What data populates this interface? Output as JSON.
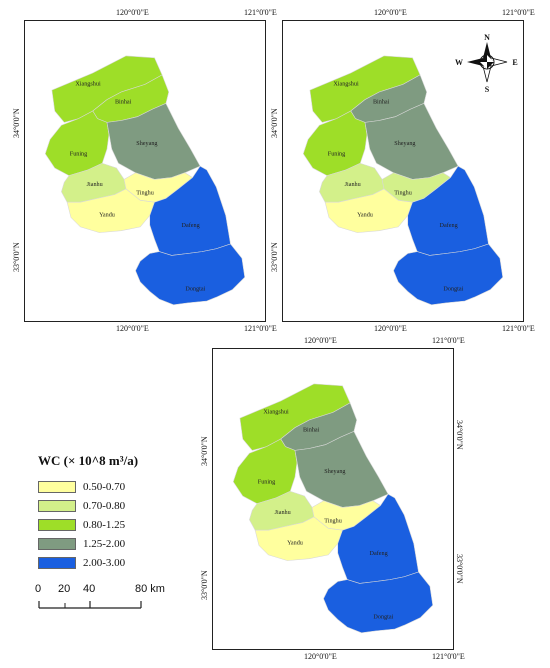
{
  "maps": [
    {
      "lon_top": [
        "120°0'0\"E",
        "121°0'0\"E"
      ],
      "lon_bottom": [
        "120°0'0\"E",
        "121°0'0\"E"
      ],
      "lat_left": [
        "34°0'0\"N",
        "33°0'0\"N"
      ],
      "lat_right": [],
      "counties": {
        "xiangshui": {
          "label": "Xiangshui",
          "class": "0.80-1.25"
        },
        "binhai": {
          "label": "Binhai",
          "class": "0.80-1.25"
        },
        "funing": {
          "label": "Funing",
          "class": "0.80-1.25"
        },
        "sheyang": {
          "label": "Sheyang",
          "class": "1.25-2.00"
        },
        "jianhu": {
          "label": "Jianhu",
          "class": "0.70-0.80"
        },
        "tinghu": {
          "label": "Tinghu",
          "class": "0.50-0.70"
        },
        "yandu": {
          "label": "Yandu",
          "class": "0.50-0.70"
        },
        "dafeng": {
          "label": "Dafeng",
          "class": "2.00-3.00"
        },
        "dongtai": {
          "label": "Dongtai",
          "class": "2.00-3.00"
        }
      },
      "compass": false
    },
    {
      "lon_top": [
        "120°0'0\"E",
        "121°0'0\"E"
      ],
      "lon_bottom": [
        "120°0'0\"E",
        "121°0'0\"E"
      ],
      "lat_left": [
        "34°0'0\"N",
        "33°0'0\"N"
      ],
      "lat_right": [],
      "counties": {
        "xiangshui": {
          "label": "Xiangshui",
          "class": "0.80-1.25"
        },
        "binhai": {
          "label": "Binhai",
          "class": "1.25-2.00"
        },
        "funing": {
          "label": "Funing",
          "class": "0.80-1.25"
        },
        "sheyang": {
          "label": "Sheyang",
          "class": "1.25-2.00"
        },
        "jianhu": {
          "label": "Jianhu",
          "class": "0.70-0.80"
        },
        "tinghu": {
          "label": "Tinghu",
          "class": "0.70-0.80"
        },
        "yandu": {
          "label": "Yandu",
          "class": "0.50-0.70"
        },
        "dafeng": {
          "label": "Dafeng",
          "class": "2.00-3.00"
        },
        "dongtai": {
          "label": "Dongtai",
          "class": "2.00-3.00"
        }
      },
      "compass": true
    },
    {
      "lon_top": [
        "120°0'0\"E",
        "121°0'0\"E"
      ],
      "lon_bottom": [
        "120°0'0\"E",
        "121°0'0\"E"
      ],
      "lat_left": [
        "34°0'0\"N",
        "33°0'0\"N"
      ],
      "lat_right": [
        "34°0'0\"N",
        "33°0'0\"N"
      ],
      "counties": {
        "xiangshui": {
          "label": "Xiangshui",
          "class": "0.80-1.25"
        },
        "binhai": {
          "label": "Binhai",
          "class": "1.25-2.00"
        },
        "funing": {
          "label": "Funing",
          "class": "0.80-1.25"
        },
        "sheyang": {
          "label": "Sheyang",
          "class": "1.25-2.00"
        },
        "jianhu": {
          "label": "Jianhu",
          "class": "0.70-0.80"
        },
        "tinghu": {
          "label": "Tinghu",
          "class": "0.50-0.70"
        },
        "yandu": {
          "label": "Yandu",
          "class": "0.50-0.70"
        },
        "dafeng": {
          "label": "Dafeng",
          "class": "2.00-3.00"
        },
        "dongtai": {
          "label": "Dongtai",
          "class": "2.00-3.00"
        }
      },
      "compass": false
    }
  ],
  "compass_letters": {
    "n": "N",
    "s": "S",
    "e": "E",
    "w": "W"
  },
  "legend": {
    "title": "WC (× 10^8 m³/a)",
    "items": [
      {
        "label": "0.50-0.70",
        "color": "#ffff9e"
      },
      {
        "label": "0.70-0.80",
        "color": "#d3f08a"
      },
      {
        "label": "0.80-1.25",
        "color": "#9ede28"
      },
      {
        "label": "1.25-2.00",
        "color": "#7f9b81"
      },
      {
        "label": "2.00-3.00",
        "color": "#1a5fe0"
      }
    ]
  },
  "scalebar": {
    "labels": [
      "0",
      "20",
      "40",
      "80 km"
    ]
  }
}
